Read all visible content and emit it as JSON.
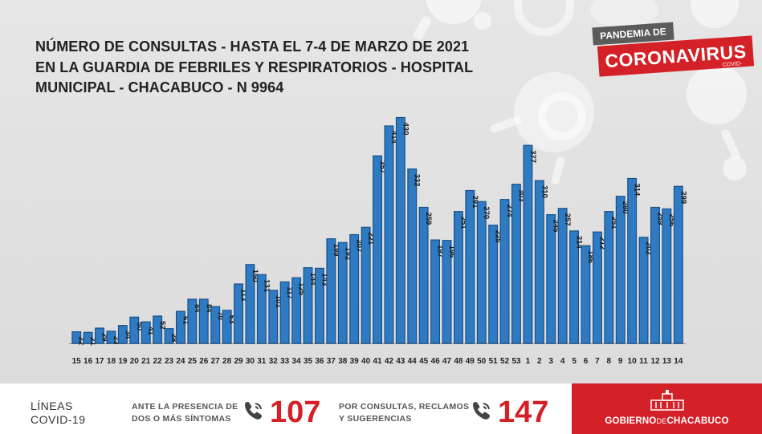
{
  "title": {
    "line1": "NÚMERO DE CONSULTAS  - HASTA EL 7-4 DE MARZO DE 2021",
    "line2": "EN LA GUARDIA DE FEBRILES Y RESPIRATORIOS - HOSPITAL",
    "line3": "MUNICIPAL  - CHACABUCO - N 9964"
  },
  "badge": {
    "pandemia": "PANDEMIA DE",
    "coronavirus": "CORONAVIRUS",
    "covid": "COVID-19"
  },
  "footer": {
    "lineas_1": "LÍNEAS",
    "lineas_2": "COVID-19",
    "note1_line1": "ANTE LA PRESENCIA DE",
    "note1_line2": "DOS O MÁS SÍNTOMAS",
    "number1": "107",
    "note2_line1": "POR CONSULTAS, RECLAMOS",
    "note2_line2": "Y SUGERENCIAS",
    "number2": "147",
    "gob_part1": "GOBIERNO",
    "gob_part2": "DE",
    "gob_part3": "CHACABUCO"
  },
  "colors": {
    "bar": "#2e7bc4",
    "bar_dark": "#1a4f86",
    "accent_red": "#d42027"
  },
  "chart_data": {
    "type": "bar",
    "categories": [
      "15",
      "16",
      "17",
      "18",
      "19",
      "20",
      "21",
      "22",
      "23",
      "24",
      "25",
      "26",
      "27",
      "28",
      "29",
      "30",
      "31",
      "32",
      "33",
      "34",
      "35",
      "36",
      "37",
      "38",
      "39",
      "40",
      "41",
      "42",
      "43",
      "44",
      "45",
      "46",
      "47",
      "48",
      "49",
      "50",
      "51",
      "52",
      "53",
      "1",
      "2",
      "3",
      "4",
      "5",
      "6",
      "7",
      "8",
      "9",
      "10",
      "11",
      "12",
      "13",
      "14"
    ],
    "values": [
      22,
      21,
      29,
      23,
      34,
      50,
      41,
      52,
      28,
      61,
      84,
      84,
      70,
      63,
      113,
      150,
      131,
      101,
      117,
      125,
      144,
      143,
      199,
      192,
      207,
      221,
      357,
      414,
      430,
      332,
      259,
      197,
      196,
      251,
      291,
      270,
      225,
      274,
      303,
      377,
      310,
      245,
      257,
      214,
      186,
      212,
      251,
      280,
      314,
      202,
      259,
      256,
      299
    ],
    "ylim": [
      0,
      440
    ],
    "grid": false,
    "legend": "none",
    "data_labels": "inside-bar-vertical"
  }
}
